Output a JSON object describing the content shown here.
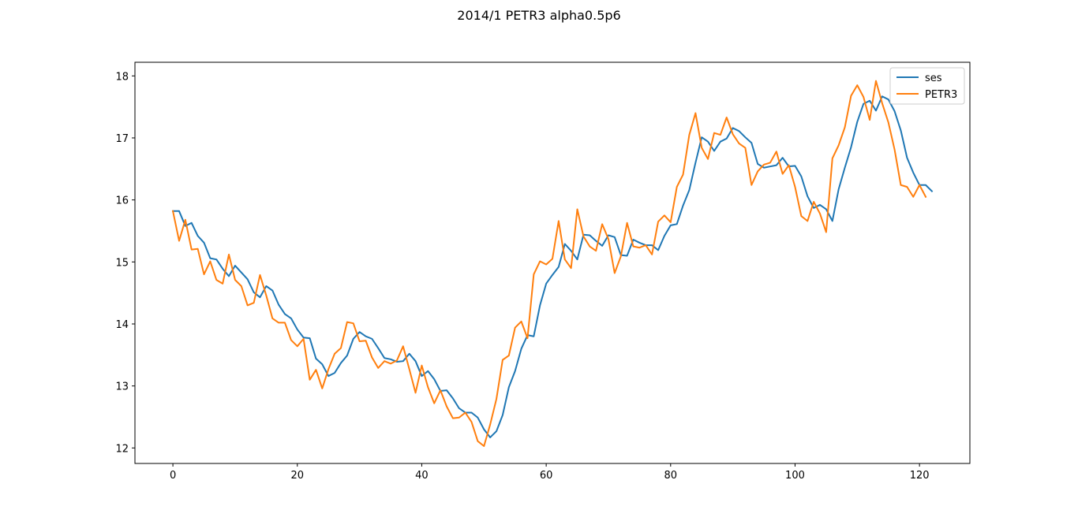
{
  "chart_data": {
    "type": "line",
    "title": "2014/1 PETR3 alpha0.5p6",
    "xlabel": "",
    "ylabel": "",
    "xlim": [
      -6.1,
      128.1
    ],
    "ylim": [
      11.75,
      18.22
    ],
    "x_ticks": [
      0,
      20,
      40,
      60,
      80,
      100,
      120
    ],
    "y_ticks": [
      12,
      13,
      14,
      15,
      16,
      17,
      18
    ],
    "grid": false,
    "legend_position": "top-right",
    "series": [
      {
        "name": "ses",
        "color": "#1f77b4",
        "values": [
          15.82,
          15.82,
          15.58,
          15.63,
          15.42,
          15.31,
          15.06,
          15.04,
          14.89,
          14.77,
          14.94,
          14.83,
          14.72,
          14.51,
          14.43,
          14.61,
          14.54,
          14.31,
          14.16,
          14.09,
          13.91,
          13.78,
          13.77,
          13.44,
          13.35,
          13.16,
          13.21,
          13.37,
          13.49,
          13.76,
          13.87,
          13.8,
          13.76,
          13.61,
          13.45,
          13.43,
          13.39,
          13.4,
          13.52,
          13.4,
          13.16,
          13.24,
          13.11,
          12.92,
          12.93,
          12.8,
          12.64,
          12.57,
          12.57,
          12.49,
          12.3,
          12.17,
          12.27,
          12.53,
          12.98,
          13.24,
          13.6,
          13.82,
          13.8,
          14.3,
          14.65,
          14.79,
          14.92,
          15.29,
          15.18,
          15.04,
          15.44,
          15.43,
          15.34,
          15.26,
          15.43,
          15.4,
          15.11,
          15.1,
          15.36,
          15.31,
          15.27,
          15.27,
          15.19,
          15.42,
          15.59,
          15.61,
          15.91,
          16.16,
          16.6,
          17.01,
          16.94,
          16.79,
          16.94,
          16.99,
          17.16,
          17.11,
          17.01,
          16.92,
          16.58,
          16.52,
          16.54,
          16.56,
          16.68,
          16.54,
          16.55,
          16.38,
          16.06,
          15.87,
          15.92,
          15.85,
          15.66,
          16.17,
          16.52,
          16.85,
          17.26,
          17.55,
          17.6,
          17.44,
          17.67,
          17.62,
          17.43,
          17.12,
          16.68,
          16.44,
          16.24,
          16.24,
          16.14
        ]
      },
      {
        "name": "PETR3",
        "color": "#ff7f0e",
        "values": [
          15.82,
          15.34,
          15.68,
          15.2,
          15.21,
          14.8,
          15.01,
          14.71,
          14.65,
          15.12,
          14.71,
          14.61,
          14.3,
          14.34,
          14.79,
          14.46,
          14.09,
          14.02,
          14.02,
          13.74,
          13.64,
          13.76,
          13.1,
          13.26,
          12.96,
          13.27,
          13.52,
          13.61,
          14.03,
          14.01,
          13.72,
          13.73,
          13.46,
          13.29,
          13.4,
          13.36,
          13.41,
          13.64,
          13.27,
          12.89,
          13.33,
          12.98,
          12.72,
          12.93,
          12.67,
          12.48,
          12.49,
          12.57,
          12.42,
          12.11,
          12.03,
          12.38,
          12.79,
          13.42,
          13.49,
          13.94,
          14.04,
          13.77,
          14.8,
          15.01,
          14.96,
          15.05,
          15.66,
          15.04,
          14.9,
          15.85,
          15.41,
          15.25,
          15.18,
          15.61,
          15.37,
          14.82,
          15.09,
          15.63,
          15.25,
          15.23,
          15.27,
          15.12,
          15.65,
          15.75,
          15.64,
          16.21,
          16.41,
          17.05,
          17.4,
          16.84,
          16.66,
          17.08,
          17.05,
          17.33,
          17.06,
          16.91,
          16.84,
          16.24,
          16.46,
          16.57,
          16.6,
          16.78,
          16.42,
          16.56,
          16.21,
          15.74,
          15.66,
          15.97,
          15.78,
          15.48,
          16.67,
          16.88,
          17.17,
          17.68,
          17.85,
          17.66,
          17.29,
          17.92,
          17.56,
          17.25,
          16.81,
          16.24,
          16.21,
          16.05,
          16.24,
          16.05
        ]
      }
    ]
  }
}
